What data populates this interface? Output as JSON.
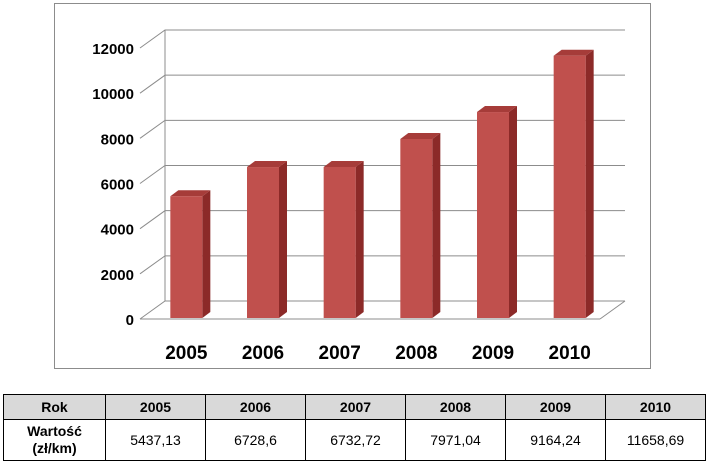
{
  "chart_data": {
    "type": "bar",
    "categories": [
      "2005",
      "2006",
      "2007",
      "2008",
      "2009",
      "2010"
    ],
    "values": [
      5437.13,
      6728.6,
      6732.72,
      7971.04,
      9164.24,
      11658.69
    ],
    "ylim": [
      0,
      12000
    ],
    "yticks": [
      "0",
      "2000",
      "4000",
      "6000",
      "8000",
      "10000",
      "12000"
    ],
    "grid": true,
    "legend": "none",
    "colors": {
      "bar_front": "#c0504d",
      "bar_side": "#8c2a28",
      "bar_top": "#a63c39",
      "grid": "#8c8c8c"
    }
  },
  "table": {
    "row_header": "Rok",
    "years": [
      "2005",
      "2006",
      "2007",
      "2008",
      "2009",
      "2010"
    ],
    "value_label_line1": "Wartość",
    "value_label_line2": "(zł/km)",
    "values_text": [
      "5437,13",
      "6728,6",
      "6732,72",
      "7971,04",
      "9164,24",
      "11658,69"
    ]
  }
}
